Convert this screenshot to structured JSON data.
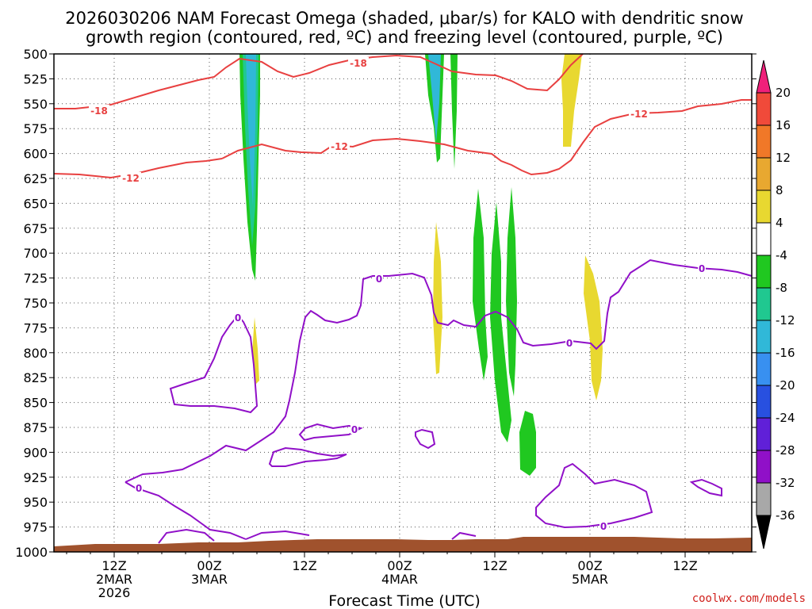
{
  "chart_data": {
    "type": "time-height contour",
    "title_line1": "2026030206 NAM Forecast Omega (shaded, μbar/s) for KALO with dendritic snow",
    "title_line2": "growth region (contoured, red, ºC) and freezing level (contoured, purple, ºC)",
    "xlabel": "Forecast Time (UTC)",
    "credit": "coolwx.com/models",
    "y_ticks": [
      "500",
      "525",
      "550",
      "575",
      "600",
      "625",
      "650",
      "675",
      "700",
      "725",
      "750",
      "775",
      "800",
      "825",
      "850",
      "875",
      "900",
      "925",
      "950",
      "975",
      "1000"
    ],
    "y_range_hpa": [
      500,
      1000
    ],
    "x_range_hours": [
      -1.6,
      86.4
    ],
    "x_ticks": [
      {
        "hour": 6,
        "lines": [
          "12Z",
          "2MAR",
          "2026"
        ]
      },
      {
        "hour": 18,
        "lines": [
          "00Z",
          "3MAR"
        ]
      },
      {
        "hour": 30,
        "lines": [
          "12Z"
        ]
      },
      {
        "hour": 42,
        "lines": [
          "00Z",
          "4MAR"
        ]
      },
      {
        "hour": 54,
        "lines": [
          "12Z"
        ]
      },
      {
        "hour": 66,
        "lines": [
          "00Z",
          "5MAR"
        ]
      },
      {
        "hour": 78,
        "lines": [
          "12Z"
        ]
      }
    ],
    "colorbar": {
      "labels": [
        "20",
        "16",
        "12",
        "8",
        "4",
        "-4",
        "-8",
        "-12",
        "-16",
        "-20",
        "-24",
        "-28",
        "-32",
        "-36"
      ],
      "colors": [
        "#f0207a",
        "#f04a3a",
        "#f07828",
        "#e8a830",
        "#e8d830",
        "#ffffff",
        "#20c820",
        "#20c890",
        "#30b8d8",
        "#3890f0",
        "#2850e0",
        "#6020d8",
        "#9010c8",
        "#a8a8a8",
        "#000000"
      ]
    },
    "contour_labels": {
      "red": [
        "-18",
        "-18",
        "-12",
        "-12",
        "-12"
      ],
      "purple": [
        "0",
        "0",
        "0",
        "0",
        "0",
        "0",
        "0"
      ]
    },
    "series_colors": {
      "dgz_contour": "#e84040",
      "freezing_contour": "#9010c8",
      "terrain": "#a0522d"
    }
  }
}
